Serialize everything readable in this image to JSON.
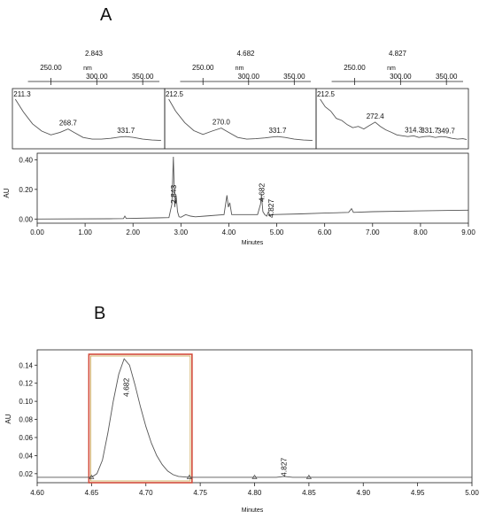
{
  "panels": {
    "a_label": "A",
    "b_label": "B"
  },
  "chart_data": [
    {
      "type": "line",
      "id": "uv-spectra",
      "xlabel": "nm",
      "ticks": [
        "250.00",
        "300.00",
        "350.00"
      ],
      "spectra": [
        {
          "name": "2.843",
          "peak_labels": [
            "211.3",
            "268.7",
            "331.7"
          ],
          "x": [
            211.3,
            220,
            230,
            240,
            250,
            260,
            268.7,
            275,
            285,
            295,
            305,
            315,
            325,
            331.7,
            340,
            350,
            360,
            370
          ],
          "y": [
            1.0,
            0.7,
            0.42,
            0.25,
            0.16,
            0.22,
            0.3,
            0.22,
            0.1,
            0.06,
            0.06,
            0.08,
            0.11,
            0.12,
            0.1,
            0.06,
            0.04,
            0.03
          ]
        },
        {
          "name": "4.682",
          "peak_labels": [
            "212.5",
            "270.0",
            "331.7"
          ],
          "x": [
            212.5,
            220,
            230,
            240,
            250,
            260,
            270,
            278,
            288,
            298,
            308,
            318,
            326,
            331.7,
            340,
            350,
            360,
            370
          ],
          "y": [
            1.0,
            0.72,
            0.45,
            0.26,
            0.17,
            0.25,
            0.32,
            0.22,
            0.1,
            0.06,
            0.07,
            0.09,
            0.11,
            0.12,
            0.1,
            0.06,
            0.04,
            0.03
          ]
        },
        {
          "name": "4.827",
          "peak_labels": [
            "212.5",
            "272.4",
            "314.3",
            "331.7",
            "349.7"
          ],
          "x": [
            212.5,
            218,
            224,
            230,
            236,
            242,
            248,
            254,
            260,
            266,
            272.4,
            278,
            284,
            290,
            296,
            302,
            308,
            314.3,
            320,
            326,
            331.7,
            338,
            344,
            349.7,
            356,
            362,
            368,
            372
          ],
          "y": [
            1.0,
            0.82,
            0.72,
            0.55,
            0.5,
            0.4,
            0.33,
            0.36,
            0.3,
            0.38,
            0.46,
            0.36,
            0.28,
            0.22,
            0.16,
            0.14,
            0.12,
            0.14,
            0.1,
            0.12,
            0.13,
            0.1,
            0.12,
            0.11,
            0.08,
            0.06,
            0.07,
            0.05
          ]
        }
      ]
    },
    {
      "type": "line",
      "id": "chromatogram-a",
      "xlabel": "Minutes",
      "ylabel": "AU",
      "xlim": [
        0,
        9
      ],
      "ylim": [
        -0.01,
        0.42
      ],
      "xticks": [
        "0.00",
        "1.00",
        "2.00",
        "3.00",
        "4.00",
        "5.00",
        "6.00",
        "7.00",
        "8.00",
        "9.00"
      ],
      "yticks": [
        "0.00",
        "0.20",
        "0.40"
      ],
      "peak_labels": [
        "2.843",
        "4.682",
        "4.827"
      ],
      "x": [
        0,
        1.5,
        1.8,
        1.83,
        1.86,
        2.5,
        2.75,
        2.81,
        2.843,
        2.87,
        2.9,
        2.93,
        2.96,
        3.0,
        3.1,
        3.2,
        3.3,
        3.5,
        3.9,
        3.96,
        3.99,
        4.02,
        4.06,
        4.3,
        4.6,
        4.66,
        4.682,
        4.71,
        4.75,
        4.79,
        4.827,
        4.86,
        4.9,
        5.5,
        6.0,
        6.5,
        6.56,
        6.6,
        7.0,
        8.0,
        9.0
      ],
      "y": [
        0.0,
        0.002,
        0.003,
        0.02,
        0.004,
        0.008,
        0.01,
        0.1,
        0.42,
        0.08,
        0.16,
        0.05,
        0.015,
        0.012,
        0.03,
        0.02,
        0.015,
        0.02,
        0.03,
        0.16,
        0.08,
        0.11,
        0.03,
        0.03,
        0.03,
        0.1,
        0.16,
        0.05,
        0.03,
        0.02,
        0.05,
        0.02,
        0.03,
        0.035,
        0.04,
        0.045,
        0.07,
        0.045,
        0.05,
        0.055,
        0.06
      ]
    },
    {
      "type": "line",
      "id": "chromatogram-b",
      "xlabel": "Minutes",
      "ylabel": "AU",
      "xlim": [
        4.6,
        5.0
      ],
      "ylim": [
        0.012,
        0.153
      ],
      "xticks": [
        "4.60",
        "4.65",
        "4.70",
        "4.75",
        "4.80",
        "4.85",
        "4.90",
        "4.95",
        "5.00"
      ],
      "yticks": [
        "0.02",
        "0.04",
        "0.06",
        "0.08",
        "0.10",
        "0.12",
        "0.14"
      ],
      "peak_labels": [
        "4.682",
        "4.827"
      ],
      "highlight_range": [
        4.65,
        4.74
      ],
      "x": [
        4.6,
        4.65,
        4.655,
        4.66,
        4.665,
        4.67,
        4.675,
        4.68,
        4.685,
        4.69,
        4.695,
        4.7,
        4.705,
        4.71,
        4.715,
        4.72,
        4.725,
        4.73,
        4.74,
        4.8,
        4.82,
        4.827,
        4.835,
        4.85,
        4.9,
        5.0
      ],
      "y": [
        0.016,
        0.016,
        0.02,
        0.035,
        0.065,
        0.1,
        0.13,
        0.147,
        0.14,
        0.118,
        0.094,
        0.072,
        0.054,
        0.04,
        0.03,
        0.023,
        0.019,
        0.017,
        0.016,
        0.016,
        0.016,
        0.017,
        0.016,
        0.016,
        0.016,
        0.016
      ]
    }
  ]
}
